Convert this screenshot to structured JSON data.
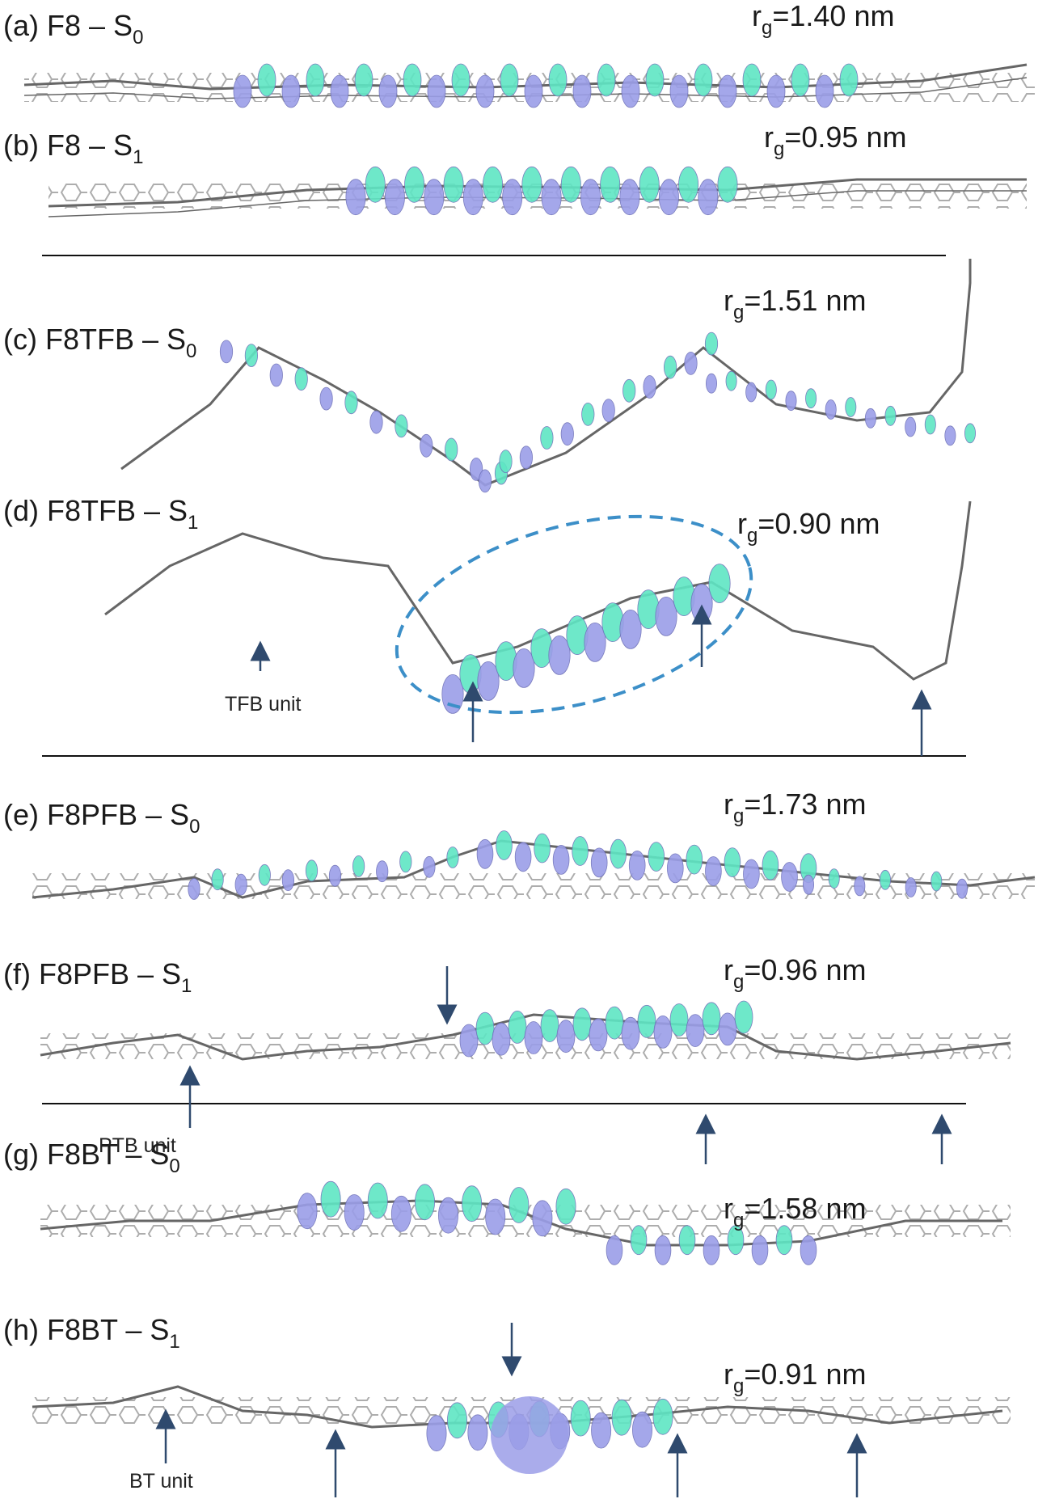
{
  "colors": {
    "lobe_blue": "#9b9ee8",
    "lobe_cyan": "#5fe6c4",
    "bond": "#555555",
    "arrow": "#2f4a6e",
    "ellipse": "#3c8fc8"
  },
  "panels": [
    {
      "id": "a",
      "label_main": "(a) F8 – S",
      "label_sub": "0",
      "rg_main": "r",
      "rg_sub": "g",
      "rg_value": "=1.40 nm"
    },
    {
      "id": "b",
      "label_main": "(b) F8 – S",
      "label_sub": "1",
      "rg_main": "r",
      "rg_sub": "g",
      "rg_value": "=0.95 nm"
    },
    {
      "id": "c",
      "label_main": "(c) F8TFB – S",
      "label_sub": "0",
      "rg_main": "r",
      "rg_sub": "g",
      "rg_value": "=1.51 nm"
    },
    {
      "id": "d",
      "label_main": "(d) F8TFB – S",
      "label_sub": "1",
      "rg_main": "r",
      "rg_sub": "g",
      "rg_value": "=0.90 nm"
    },
    {
      "id": "e",
      "label_main": "(e) F8PFB – S",
      "label_sub": "0",
      "rg_main": "r",
      "rg_sub": "g",
      "rg_value": "=1.73 nm"
    },
    {
      "id": "f",
      "label_main": "(f) F8PFB – S",
      "label_sub": "1",
      "rg_main": "r",
      "rg_sub": "g",
      "rg_value": "=0.96 nm"
    },
    {
      "id": "g",
      "label_main": "(g) F8BT – S",
      "label_sub": "0",
      "rg_main": "r",
      "rg_sub": "g",
      "rg_value": "=1.58 nm"
    },
    {
      "id": "h",
      "label_main": "(h) F8BT – S",
      "label_sub": "1",
      "rg_main": "r",
      "rg_sub": "g",
      "rg_value": "=0.91 nm"
    }
  ],
  "unit_notes": {
    "tfb": "TFB unit",
    "ptb": "PTB unit",
    "bt": "BT unit"
  }
}
